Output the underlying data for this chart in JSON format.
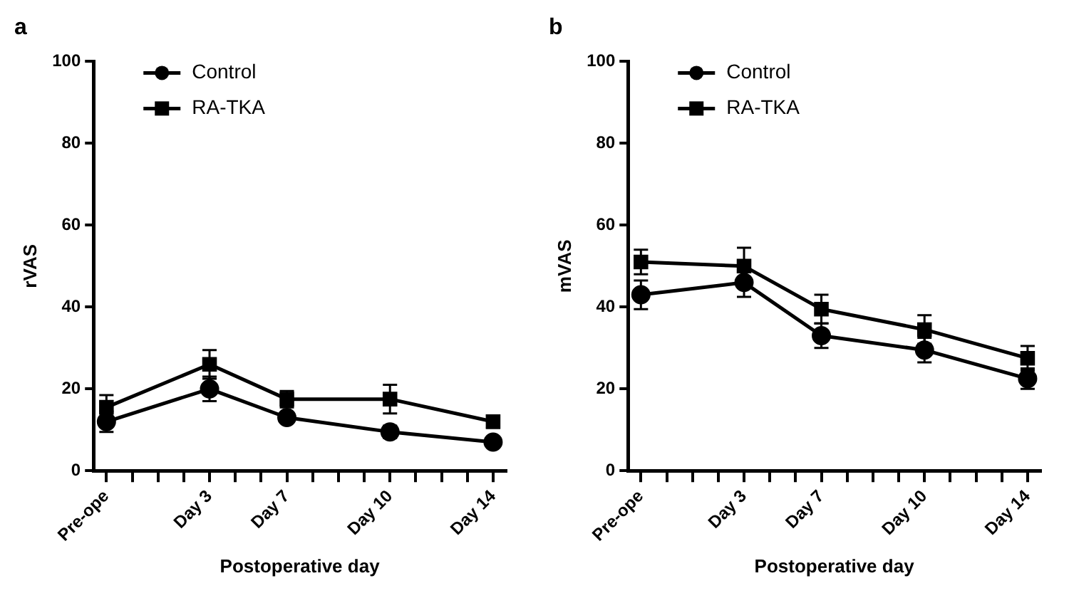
{
  "chart_data": [
    {
      "type": "line",
      "title": "a",
      "xlabel": "Postoperative day",
      "ylabel": "rVAS",
      "categories": [
        "Pre-ope",
        null,
        null,
        null,
        "Day 3",
        null,
        null,
        "Day 7",
        null,
        null,
        null,
        "Day 10",
        null,
        null,
        null,
        "Day 14"
      ],
      "ylim": [
        0,
        100
      ],
      "yticks": [
        0,
        20,
        40,
        60,
        80,
        100
      ],
      "grid": false,
      "legend": "top left",
      "series": [
        {
          "name": "Control",
          "color": "#000000",
          "marker": "circle",
          "values": [
            12,
            null,
            null,
            null,
            20,
            null,
            null,
            13,
            null,
            null,
            null,
            9.5,
            null,
            null,
            null,
            7
          ],
          "errors": [
            2.5,
            null,
            null,
            null,
            3,
            null,
            null,
            1,
            null,
            null,
            null,
            1.5,
            null,
            null,
            null,
            1
          ]
        },
        {
          "name": "RA-TKA",
          "color": "#000000",
          "marker": "square",
          "values": [
            15.5,
            null,
            null,
            null,
            26,
            null,
            null,
            17.5,
            null,
            null,
            null,
            17.5,
            null,
            null,
            null,
            12
          ],
          "errors": [
            3,
            null,
            null,
            null,
            3.5,
            null,
            null,
            2,
            null,
            null,
            null,
            3.5,
            null,
            null,
            null,
            1.5
          ]
        }
      ]
    },
    {
      "type": "line",
      "title": "b",
      "xlabel": "Postoperative day",
      "ylabel": "mVAS",
      "categories": [
        "Pre-ope",
        null,
        null,
        null,
        "Day 3",
        null,
        null,
        "Day 7",
        null,
        null,
        null,
        "Day 10",
        null,
        null,
        null,
        "Day 14"
      ],
      "ylim": [
        0,
        100
      ],
      "yticks": [
        0,
        20,
        40,
        60,
        80,
        100
      ],
      "grid": false,
      "legend": "top left",
      "series": [
        {
          "name": "Control",
          "color": "#000000",
          "marker": "circle",
          "values": [
            43,
            null,
            null,
            null,
            46,
            null,
            null,
            33,
            null,
            null,
            null,
            29.5,
            null,
            null,
            null,
            22.5
          ],
          "errors": [
            3.5,
            null,
            null,
            null,
            3.5,
            null,
            null,
            3,
            null,
            null,
            null,
            3,
            null,
            null,
            null,
            2.5
          ]
        },
        {
          "name": "RA-TKA",
          "color": "#000000",
          "marker": "square",
          "values": [
            51,
            null,
            null,
            null,
            50,
            null,
            null,
            39.5,
            null,
            null,
            null,
            34.5,
            null,
            null,
            null,
            27.5
          ],
          "errors": [
            3,
            null,
            null,
            null,
            4.5,
            null,
            null,
            3.5,
            null,
            null,
            null,
            3.5,
            null,
            null,
            null,
            3
          ]
        }
      ]
    }
  ]
}
